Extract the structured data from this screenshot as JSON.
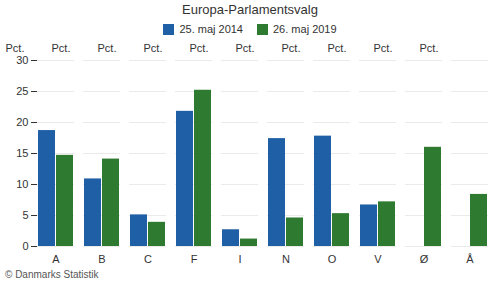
{
  "chart_data": {
    "type": "bar",
    "title": "Europa-Parlamentsvalg",
    "categories": [
      "A",
      "B",
      "C",
      "F",
      "I",
      "N",
      "O",
      "V",
      "Ø",
      "Å"
    ],
    "series": [
      {
        "name": "25. maj 2014",
        "color": "#1f5fa6",
        "values": [
          18.7,
          10.9,
          5.1,
          21.8,
          2.7,
          17.4,
          17.8,
          6.7,
          0,
          0
        ]
      },
      {
        "name": "26. maj 2019",
        "color": "#2d7a30",
        "values": [
          14.7,
          14.1,
          3.9,
          25.2,
          1.2,
          4.6,
          5.3,
          7.2,
          16.0,
          8.4
        ]
      }
    ],
    "ylabel": "Pct.",
    "ylim": [
      0,
      30
    ],
    "yticks": [
      0,
      5,
      10,
      15,
      20,
      25,
      30
    ],
    "grid": true,
    "legend": "top",
    "caption": "© Danmarks Statistik"
  }
}
